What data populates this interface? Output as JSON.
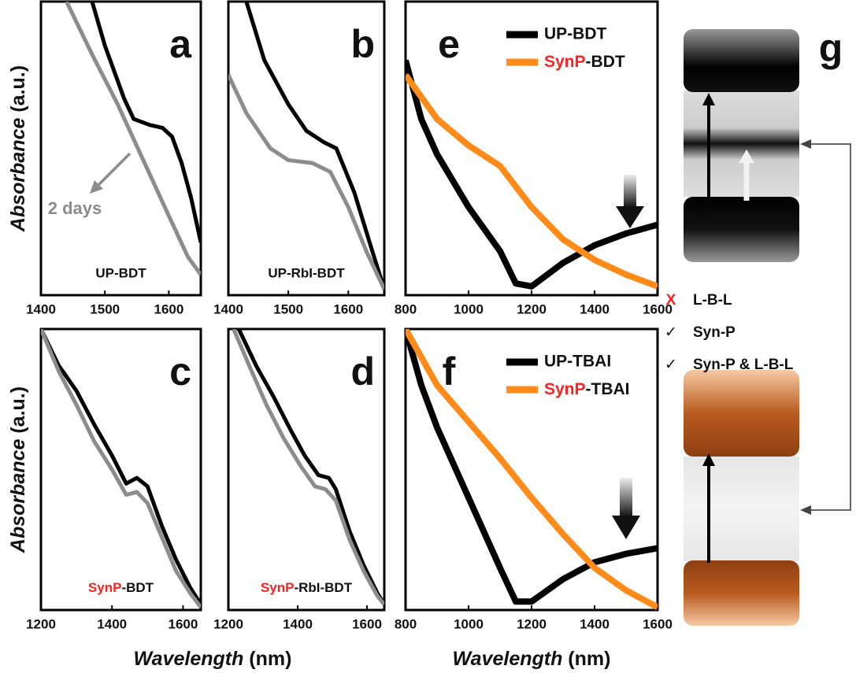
{
  "chart_data": [
    {
      "type": "line",
      "panel_label": "a",
      "annotation": "UP-BDT",
      "arrow_label": "2 days",
      "ylabel": "Absorbance (a.u.)",
      "xlim": [
        1400,
        1650
      ],
      "ylim": [
        0,
        1
      ],
      "xticks": [
        1400,
        1500,
        1600
      ],
      "series": [
        {
          "color": "#000000",
          "x": [
            1480,
            1500,
            1530,
            1545,
            1570,
            1590,
            1605,
            1620,
            1635,
            1650
          ],
          "values": [
            1.0,
            0.85,
            0.67,
            0.6,
            0.58,
            0.57,
            0.54,
            0.45,
            0.33,
            0.18
          ]
        },
        {
          "color": "#8c8c8c",
          "x": [
            1440,
            1480,
            1520,
            1560,
            1600,
            1630,
            1650
          ],
          "values": [
            1.0,
            0.82,
            0.65,
            0.46,
            0.27,
            0.13,
            0.07
          ]
        }
      ]
    },
    {
      "type": "line",
      "panel_label": "b",
      "annotation": "UP-RbI-BDT",
      "xlim": [
        1400,
        1660
      ],
      "ylim": [
        0,
        1
      ],
      "xticks": [
        1400,
        1500,
        1600
      ],
      "series": [
        {
          "color": "#000000",
          "x": [
            1430,
            1460,
            1500,
            1530,
            1560,
            1580,
            1610,
            1640,
            1660
          ],
          "values": [
            1.0,
            0.8,
            0.65,
            0.56,
            0.52,
            0.5,
            0.35,
            0.15,
            0.02
          ]
        },
        {
          "color": "#8c8c8c",
          "x": [
            1400,
            1430,
            1470,
            1500,
            1540,
            1570,
            1600,
            1630,
            1660
          ],
          "values": [
            0.75,
            0.62,
            0.5,
            0.46,
            0.45,
            0.42,
            0.3,
            0.15,
            0.02
          ]
        }
      ]
    },
    {
      "type": "line",
      "panel_label": "e",
      "xlim": [
        800,
        1600
      ],
      "ylim": [
        0,
        1
      ],
      "xticks": [
        800,
        1000,
        1200,
        1400,
        1600
      ],
      "series": [
        {
          "name": "UP-BDT",
          "color": "#000000",
          "x": [
            800,
            850,
            900,
            1000,
            1100,
            1150,
            1200,
            1300,
            1400,
            1500,
            1600
          ],
          "values": [
            0.8,
            0.6,
            0.48,
            0.3,
            0.15,
            0.04,
            0.03,
            0.11,
            0.17,
            0.21,
            0.24
          ]
        },
        {
          "name": "SynP-BDT",
          "name_color": "#ff2020",
          "color": "#ff8c1a",
          "x": [
            800,
            900,
            1000,
            1100,
            1200,
            1300,
            1400,
            1500,
            1600
          ],
          "values": [
            0.75,
            0.6,
            0.51,
            0.44,
            0.3,
            0.19,
            0.12,
            0.07,
            0.03
          ]
        }
      ]
    },
    {
      "type": "line",
      "panel_label": "c",
      "annotation": "SynP-BDT",
      "annotation_color": "#ff2020",
      "ylabel": "Absorbance (a.u.)",
      "xlabel": "Wavelength (nm)",
      "xlim": [
        1200,
        1650
      ],
      "ylim": [
        0,
        1
      ],
      "xticks": [
        1200,
        1400,
        1600
      ],
      "series": [
        {
          "color": "#000000",
          "x": [
            1200,
            1250,
            1300,
            1350,
            1400,
            1440,
            1470,
            1500,
            1540,
            1580,
            1620,
            1650
          ],
          "values": [
            1.0,
            0.87,
            0.78,
            0.66,
            0.55,
            0.45,
            0.47,
            0.44,
            0.3,
            0.18,
            0.08,
            0.02
          ]
        },
        {
          "color": "#8c8c8c",
          "x": [
            1200,
            1250,
            1300,
            1350,
            1400,
            1440,
            1470,
            1500,
            1540,
            1580,
            1620,
            1650
          ],
          "values": [
            1.0,
            0.85,
            0.73,
            0.6,
            0.5,
            0.41,
            0.42,
            0.38,
            0.26,
            0.14,
            0.06,
            0.01
          ]
        }
      ]
    },
    {
      "type": "line",
      "panel_label": "d",
      "annotation": "SynP-RbI-BDT",
      "annotation_color": "#ff2020",
      "xlim": [
        1200,
        1650
      ],
      "ylim": [
        0,
        1
      ],
      "xticks": [
        1200,
        1400,
        1600
      ],
      "series": [
        {
          "color": "#000000",
          "x": [
            1230,
            1280,
            1330,
            1380,
            1420,
            1460,
            1490,
            1510,
            1550,
            1590,
            1630,
            1650
          ],
          "values": [
            1.0,
            0.87,
            0.76,
            0.64,
            0.55,
            0.48,
            0.47,
            0.43,
            0.28,
            0.16,
            0.06,
            0.02
          ]
        },
        {
          "color": "#8c8c8c",
          "x": [
            1215,
            1260,
            1310,
            1360,
            1410,
            1450,
            1480,
            1510,
            1550,
            1590,
            1630,
            1650
          ],
          "values": [
            1.0,
            0.87,
            0.73,
            0.61,
            0.51,
            0.44,
            0.43,
            0.39,
            0.25,
            0.14,
            0.05,
            0.02
          ]
        }
      ]
    },
    {
      "type": "line",
      "panel_label": "f",
      "xlabel": "Wavelength (nm)",
      "xlim": [
        800,
        1600
      ],
      "ylim": [
        0,
        1
      ],
      "xticks": [
        800,
        1000,
        1200,
        1400,
        1600
      ],
      "series": [
        {
          "name": "UP-TBAI",
          "color": "#000000",
          "x": [
            800,
            850,
            900,
            1000,
            1100,
            1150,
            1200,
            1300,
            1400,
            1500,
            1600
          ],
          "values": [
            1.0,
            0.8,
            0.65,
            0.4,
            0.15,
            0.03,
            0.03,
            0.11,
            0.17,
            0.2,
            0.22
          ]
        },
        {
          "name": "SynP-TBAI",
          "name_color": "#ff2020",
          "color": "#ff8c1a",
          "x": [
            800,
            900,
            1000,
            1100,
            1200,
            1300,
            1400,
            1500,
            1600
          ],
          "values": [
            1.0,
            0.8,
            0.67,
            0.54,
            0.4,
            0.27,
            0.15,
            0.07,
            0.01
          ]
        }
      ]
    }
  ],
  "diagram": {
    "panel_label": "g",
    "checklist": [
      {
        "mark": "X",
        "mark_color": "#ff2020",
        "text": "L-B-L"
      },
      {
        "mark": "✓",
        "text": "Syn-P"
      },
      {
        "mark": "✓",
        "text": "Syn-P & L-B-L"
      }
    ]
  }
}
